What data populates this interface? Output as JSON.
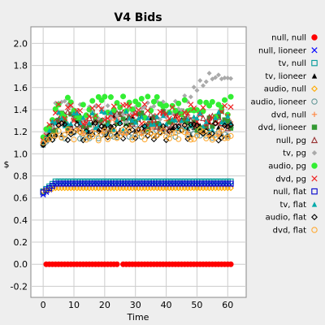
{
  "chart_data": {
    "type": "scatter",
    "title": "V4 Bids",
    "xlabel": "Time",
    "ylabel": "$",
    "xlim": [
      -4,
      66
    ],
    "ylim": [
      -0.3,
      2.15
    ],
    "xticks": [
      "0",
      "10",
      "20",
      "30",
      "40",
      "50",
      "60"
    ],
    "yticks": [
      "-0.2",
      "0.0",
      "0.2",
      "0.4",
      "0.6",
      "0.8",
      "1.0",
      "1.2",
      "1.4",
      "1.6",
      "1.8",
      "2.0"
    ],
    "grid": true,
    "legend_position": "right",
    "series": [
      {
        "name": "null, null",
        "marker": "circle-filled",
        "color": "#ff0000",
        "pattern": {
          "x_start": 1,
          "x_end": 61,
          "base": 0.0,
          "amp": 0.0,
          "seed": 0,
          "gaps": [
            25
          ]
        }
      },
      {
        "name": "null, lioneer",
        "marker": "cross",
        "color": "#0000ff",
        "pattern": {
          "x_start": 0,
          "x_end": 61,
          "base": 0.72,
          "amp": 0.0,
          "seed": 0,
          "ramp_start": 0.63
        }
      },
      {
        "name": "tv, null",
        "marker": "square-open",
        "color": "#009999",
        "pattern": {
          "x_start": 0,
          "x_end": 61,
          "base": 0.75,
          "amp": 0.0,
          "seed": 0,
          "ramp_start": 0.66
        }
      },
      {
        "name": "tv, lioneer",
        "marker": "triangle-filled",
        "color": "#000000",
        "pattern": {
          "x_start": 0,
          "x_end": 61,
          "base": 1.26,
          "amp": 0.09,
          "seed": 3,
          "ramp_start": 1.08
        }
      },
      {
        "name": "audio, null",
        "marker": "diamond-open",
        "color": "#ffaa00",
        "pattern": {
          "x_start": 0,
          "x_end": 61,
          "base": 0.69,
          "amp": 0.0,
          "seed": 0,
          "ramp_start": 0.66
        }
      },
      {
        "name": "audio, lioneer",
        "marker": "circle-open",
        "color": "#669999",
        "pattern": {
          "x_start": 0,
          "x_end": 61,
          "base": 1.2,
          "amp": 0.07,
          "seed": 7,
          "ramp_start": 1.08
        }
      },
      {
        "name": "dvd, null",
        "marker": "plus",
        "color": "#ff8844",
        "pattern": {
          "x_start": 0,
          "x_end": 61,
          "base": 1.25,
          "amp": 0.08,
          "seed": 11,
          "ramp_start": 1.1
        }
      },
      {
        "name": "dvd, lioneer",
        "marker": "square-filled",
        "color": "#339933",
        "pattern": {
          "x_start": 0,
          "x_end": 61,
          "base": 1.3,
          "amp": 0.09,
          "seed": 13,
          "ramp_start": 1.1
        }
      },
      {
        "name": "null, pg",
        "marker": "triangle-open",
        "color": "#993333",
        "pattern": {
          "x_start": 0,
          "x_end": 61,
          "base": 1.3,
          "amp": 0.08,
          "seed": 17,
          "ramp_start": 1.12
        }
      },
      {
        "name": "tv, pg",
        "marker": "diamond-filled",
        "color": "#aaaaaa",
        "pattern": {
          "x_start": 0,
          "x_end": 61,
          "base": 1.38,
          "amp": 0.1,
          "seed": 19,
          "ramp_start": 1.12,
          "late_rise": 1.7
        }
      },
      {
        "name": "audio, pg",
        "marker": "circle-filled",
        "color": "#33ee33",
        "pattern": {
          "x_start": 0,
          "x_end": 61,
          "base": 1.42,
          "amp": 0.1,
          "seed": 23,
          "ramp_start": 1.15
        }
      },
      {
        "name": "dvd, pg",
        "marker": "cross",
        "color": "#ee2222",
        "pattern": {
          "x_start": 0,
          "x_end": 61,
          "base": 1.36,
          "amp": 0.09,
          "seed": 29,
          "ramp_start": 1.12
        }
      },
      {
        "name": "null, flat",
        "marker": "square-open",
        "color": "#0000cc",
        "pattern": {
          "x_start": 0,
          "x_end": 61,
          "base": 0.73,
          "amp": 0.0,
          "seed": 0,
          "ramp_start": 0.65
        }
      },
      {
        "name": "tv, flat",
        "marker": "triangle-filled",
        "color": "#00aaaa",
        "pattern": {
          "x_start": 0,
          "x_end": 61,
          "base": 1.3,
          "amp": 0.09,
          "seed": 31,
          "ramp_start": 1.1
        }
      },
      {
        "name": "audio, flat",
        "marker": "diamond-open",
        "color": "#000000",
        "pattern": {
          "x_start": 0,
          "x_end": 61,
          "base": 1.2,
          "amp": 0.08,
          "seed": 37,
          "ramp_start": 1.08
        }
      },
      {
        "name": "dvd, flat",
        "marker": "circle-open",
        "color": "#ffaa33",
        "pattern": {
          "x_start": 0,
          "x_end": 61,
          "base": 1.17,
          "amp": 0.05,
          "seed": 41,
          "ramp_start": 1.1
        }
      }
    ]
  }
}
